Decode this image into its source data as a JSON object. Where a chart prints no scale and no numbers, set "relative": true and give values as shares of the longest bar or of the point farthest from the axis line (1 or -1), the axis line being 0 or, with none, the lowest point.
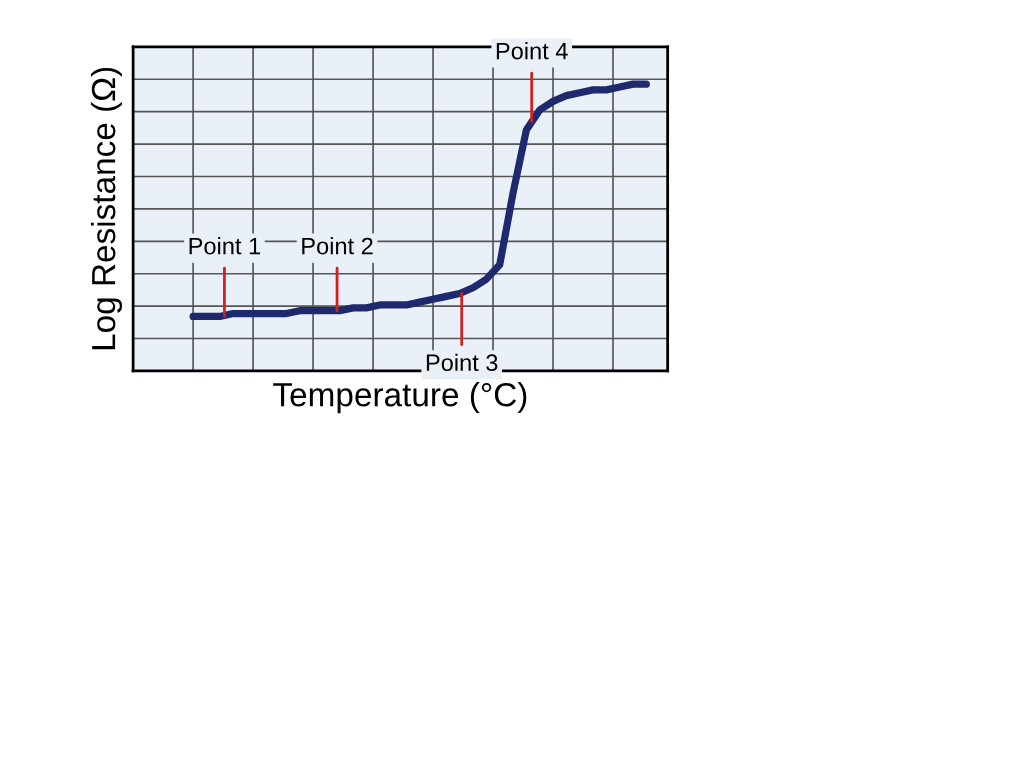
{
  "chart_data": {
    "type": "line",
    "relative": true,
    "xlabel": "Temperature (°C)",
    "ylabel": "Log Resistance (Ω)",
    "categories": [
      null,
      null,
      null,
      null,
      null,
      null,
      null,
      null,
      null,
      null,
      null,
      null,
      null,
      null,
      null,
      null,
      null,
      null,
      null,
      null,
      null,
      null,
      null,
      null,
      null,
      null,
      null,
      null,
      null,
      null,
      null,
      null,
      null,
      null,
      null
    ],
    "series": [
      {
        "color": "#1f2a6e",
        "values": [
          0.19,
          0.19,
          0.19,
          0.2,
          0.2,
          0.2,
          0.2,
          0.2,
          0.21,
          0.21,
          0.21,
          0.21,
          0.22,
          0.22,
          0.23,
          0.23,
          0.23,
          0.24,
          0.25,
          0.26,
          0.27,
          0.29,
          0.32,
          0.37,
          0.62,
          0.84,
          0.91,
          0.94,
          0.96,
          0.97,
          0.98,
          0.98,
          0.99,
          1.0,
          1.0
        ]
      }
    ],
    "annotations": [
      "Point 1",
      "Point 2",
      "Point 3",
      "Point 4"
    ],
    "grid": true,
    "marker": "none",
    "line_style": "solid"
  }
}
